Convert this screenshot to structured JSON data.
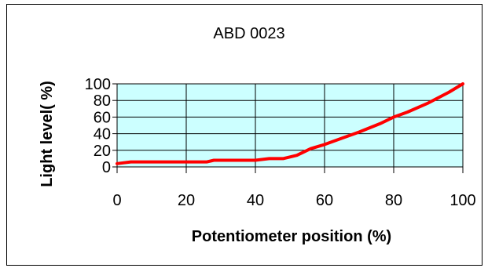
{
  "chart_data": {
    "type": "line",
    "title": "ABD 0023",
    "xlabel": "Potentiometer position (%)",
    "ylabel": "Light level( %)",
    "xlim": [
      0,
      100
    ],
    "ylim": [
      0,
      100
    ],
    "x_ticks": [
      0,
      20,
      40,
      60,
      80,
      100
    ],
    "y_ticks": [
      0,
      20,
      40,
      60,
      80,
      100
    ],
    "grid": true,
    "legend": "none",
    "plot_background": "#ccffff",
    "series": [
      {
        "color": "#ff0000",
        "points": [
          [
            0,
            4
          ],
          [
            2,
            5
          ],
          [
            4,
            6
          ],
          [
            10,
            6
          ],
          [
            20,
            6
          ],
          [
            26,
            6
          ],
          [
            28,
            8
          ],
          [
            35,
            8
          ],
          [
            40,
            8
          ],
          [
            44,
            10
          ],
          [
            48,
            10
          ],
          [
            50,
            12
          ],
          [
            52,
            14
          ],
          [
            54,
            18
          ],
          [
            56,
            22
          ],
          [
            60,
            27
          ],
          [
            64,
            33
          ],
          [
            70,
            42
          ],
          [
            76,
            52
          ],
          [
            80,
            60
          ],
          [
            84,
            66
          ],
          [
            90,
            77
          ],
          [
            96,
            90
          ],
          [
            100,
            100
          ]
        ]
      }
    ]
  }
}
